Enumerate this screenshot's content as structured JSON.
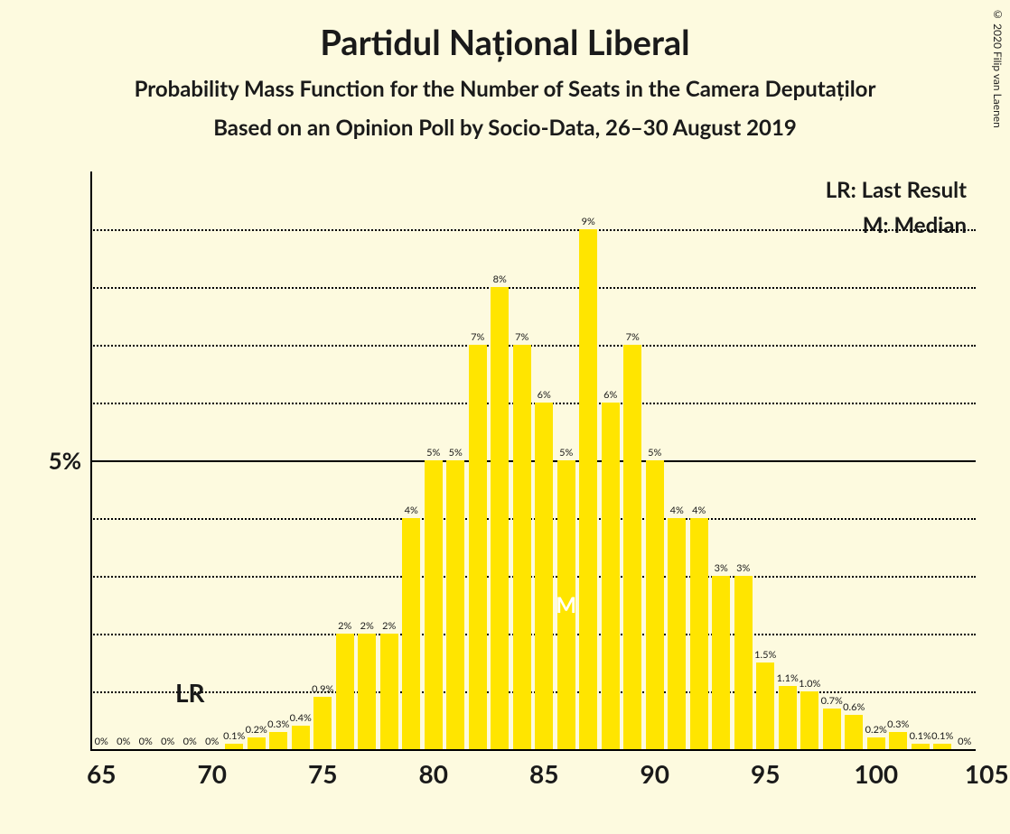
{
  "copyright": "© 2020 Filip van Laenen",
  "title": "Partidul Național Liberal",
  "subtitle1": "Probability Mass Function for the Number of Seats in the Camera Deputaților",
  "subtitle2": "Based on an Opinion Poll by Socio-Data, 26–30 August 2019",
  "legend_lr": "LR: Last Result",
  "legend_m": "M: Median",
  "lr_label": "LR",
  "median_label": "M",
  "chart": {
    "type": "bar",
    "background_color": "#fdfadf",
    "bar_color": "#ffe500",
    "grid_color": "#000000",
    "axis_color": "#000000",
    "x_min": 65,
    "x_max": 105,
    "x_tick_step": 5,
    "x_ticks": [
      65,
      70,
      75,
      80,
      85,
      90,
      95,
      100,
      105
    ],
    "y_max_percent": 10,
    "y_ticks": [
      1,
      2,
      3,
      4,
      5,
      6,
      7,
      8,
      9
    ],
    "y_solid_tick": 5,
    "y_label_value": "5%",
    "y_label_at": 5,
    "lr_at": 69,
    "median_at": 86,
    "bar_width_ratio": 0.82,
    "bar_label_fontsize": 11,
    "axis_label_fontsize": 28,
    "title_fontsize": 38,
    "subtitle_fontsize": 24,
    "seats": [
      65,
      66,
      67,
      68,
      69,
      70,
      71,
      72,
      73,
      74,
      75,
      76,
      77,
      78,
      79,
      80,
      81,
      82,
      83,
      84,
      85,
      86,
      87,
      88,
      89,
      90,
      91,
      92,
      93,
      94,
      95,
      96,
      97,
      98,
      99,
      100,
      101,
      102,
      103,
      104
    ],
    "values": [
      0,
      0,
      0,
      0,
      0,
      0,
      0.1,
      0.2,
      0.3,
      0.4,
      0.9,
      2,
      2,
      2,
      4,
      5,
      5,
      7,
      8,
      7,
      6,
      5,
      9,
      6,
      7,
      5,
      4,
      4,
      3,
      3,
      1.5,
      1.1,
      1.0,
      0.7,
      0.6,
      0.2,
      0.3,
      0.1,
      0.1,
      0
    ],
    "labels": [
      "0%",
      "0%",
      "0%",
      "0%",
      "0%",
      "0%",
      "0.1%",
      "0.2%",
      "0.3%",
      "0.4%",
      "0.9%",
      "2%",
      "2%",
      "2%",
      "4%",
      "5%",
      "5%",
      "7%",
      "8%",
      "7%",
      "6%",
      "5%",
      "9%",
      "6%",
      "7%",
      "5%",
      "4%",
      "4%",
      "3%",
      "3%",
      "1.5%",
      "1.1%",
      "1.0%",
      "0.7%",
      "0.6%",
      "0.2%",
      "0.3%",
      "0.1%",
      "0.1%",
      "0%"
    ]
  }
}
